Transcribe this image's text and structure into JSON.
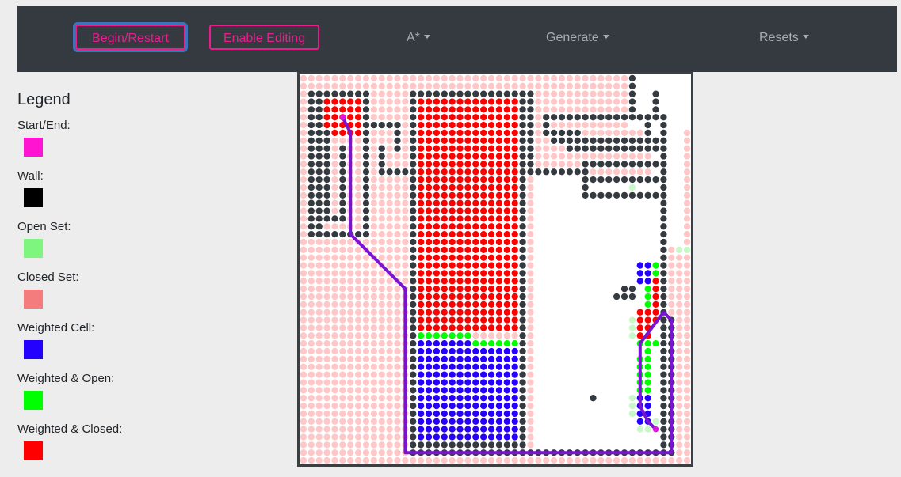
{
  "navbar": {
    "begin_label": "Begin/Restart",
    "edit_label": "Enable Editing",
    "algorithm_label": "A*",
    "generate_label": "Generate",
    "resets_label": "Resets"
  },
  "legend": {
    "title": "Legend",
    "items": [
      {
        "label": "Start/End:",
        "color": "#ff14d2"
      },
      {
        "label": "Wall:",
        "color": "#000000"
      },
      {
        "label": "Open Set:",
        "color": "#7ef57e"
      },
      {
        "label": "Closed Set:",
        "color": "#f47c7c"
      },
      {
        "label": "Weighted Cell:",
        "color": "#2400ff"
      },
      {
        "label": "Weighted & Open:",
        "color": "#00ff00"
      },
      {
        "label": "Weighted & Closed:",
        "color": "#ff0000"
      }
    ]
  },
  "grid": {
    "cols": 50,
    "rows": 50,
    "colors": {
      "background": "#ffffff",
      "closed": "#ffc7c7",
      "open": "#c8f7c8",
      "wall": "#343a40",
      "weighted": "#2400ff",
      "weighted_open": "#00ff00",
      "weighted_closed": "#ff0000",
      "path": "#7a14d0",
      "endpoint": "#e012e0"
    },
    "closed_region": {
      "c0": 0,
      "r0": 0,
      "c1": 49,
      "r1": 49
    },
    "empty_regions": [
      {
        "c0": 30,
        "r0": 13,
        "c1": 46,
        "r1": 47
      },
      {
        "c0": 42,
        "r0": 0,
        "c1": 49,
        "r1": 6
      },
      {
        "c0": 45,
        "r0": 6,
        "c1": 48,
        "r1": 21
      }
    ],
    "weighted_regions": [
      {
        "type": "weighted_closed",
        "c0": 15,
        "r0": 3,
        "c1": 28,
        "r1": 32
      },
      {
        "type": "weighted_open",
        "c0": 15,
        "r0": 33,
        "c1": 21,
        "r1": 33
      },
      {
        "type": "weighted_open",
        "c0": 22,
        "r0": 34,
        "c1": 28,
        "r1": 34
      },
      {
        "type": "weighted",
        "c0": 15,
        "r0": 34,
        "c1": 21,
        "r1": 47
      },
      {
        "type": "weighted",
        "c0": 22,
        "r0": 35,
        "c1": 28,
        "r1": 47
      },
      {
        "type": "weighted_closed",
        "c0": 3,
        "r0": 3,
        "c1": 7,
        "r1": 7
      },
      {
        "type": "weighted",
        "c0": 43,
        "r0": 24,
        "c1": 44,
        "r1": 26
      },
      {
        "type": "weighted_open",
        "c0": 45,
        "r0": 24,
        "c1": 46,
        "r1": 25
      },
      {
        "type": "weighted_closed",
        "c0": 45,
        "r0": 26,
        "c1": 46,
        "r1": 31
      },
      {
        "type": "weighted_open",
        "c0": 44,
        "r0": 27,
        "c1": 44,
        "r1": 29
      },
      {
        "type": "weighted_closed",
        "c0": 43,
        "r0": 30,
        "c1": 44,
        "r1": 33
      },
      {
        "type": "weighted_open",
        "c0": 43,
        "r0": 34,
        "c1": 45,
        "r1": 34
      },
      {
        "type": "weighted_open",
        "c0": 44,
        "r0": 35,
        "c1": 44,
        "r1": 40
      },
      {
        "type": "weighted_open",
        "c0": 43,
        "r0": 36,
        "c1": 43,
        "r1": 40
      },
      {
        "type": "weighted",
        "c0": 43,
        "r0": 41,
        "c1": 44,
        "r1": 44
      }
    ],
    "open_cells": [
      [
        48,
        22
      ],
      [
        49,
        22
      ],
      [
        42,
        31
      ],
      [
        42,
        32
      ],
      [
        42,
        33
      ],
      [
        42,
        41
      ],
      [
        42,
        42
      ],
      [
        42,
        43
      ],
      [
        43,
        45
      ],
      [
        44,
        45
      ],
      [
        45,
        44
      ],
      [
        46,
        6
      ],
      [
        42,
        14
      ]
    ],
    "wall_segments": [
      [
        1,
        2,
        1,
        20
      ],
      [
        2,
        2,
        2,
        20
      ],
      [
        1,
        20,
        7,
        20
      ],
      [
        2,
        2,
        8,
        2
      ],
      [
        8,
        2,
        8,
        20
      ],
      [
        3,
        7,
        3,
        18
      ],
      [
        5,
        9,
        5,
        18
      ],
      [
        3,
        18,
        5,
        18
      ],
      [
        9,
        6,
        12,
        6
      ],
      [
        12,
        6,
        12,
        9
      ],
      [
        10,
        9,
        10,
        12
      ],
      [
        10,
        12,
        14,
        12
      ],
      [
        14,
        10,
        14,
        12
      ],
      [
        14,
        2,
        14,
        47
      ],
      [
        14,
        2,
        29,
        2
      ],
      [
        29,
        2,
        29,
        12
      ],
      [
        29,
        12,
        36,
        12
      ],
      [
        36,
        11,
        45,
        11
      ],
      [
        36,
        11,
        36,
        15
      ],
      [
        36,
        15,
        46,
        15
      ],
      [
        31,
        5,
        46,
        5
      ],
      [
        31,
        5,
        31,
        7
      ],
      [
        31,
        7,
        35,
        7
      ],
      [
        35,
        7,
        35,
        8
      ],
      [
        32,
        8,
        45,
        8
      ],
      [
        34,
        9,
        45,
        9
      ],
      [
        44,
        6,
        44,
        9
      ],
      [
        42,
        0,
        42,
        4
      ],
      [
        45,
        2,
        45,
        5
      ],
      [
        37,
        13,
        45,
        13
      ],
      [
        46,
        6,
        46,
        48
      ],
      [
        14,
        48,
        47,
        48
      ],
      [
        14,
        47,
        28,
        47
      ],
      [
        28,
        2,
        28,
        47
      ],
      [
        40,
        28,
        42,
        28
      ],
      [
        41,
        27,
        42,
        27
      ],
      [
        37,
        41,
        37,
        41
      ],
      [
        47,
        31,
        47,
        48
      ]
    ],
    "path": [
      [
        5,
        5
      ],
      [
        6,
        7
      ],
      [
        6,
        20
      ],
      [
        13,
        27
      ],
      [
        13,
        48
      ],
      [
        47,
        48
      ],
      [
        47,
        31
      ],
      [
        46,
        30
      ],
      [
        43,
        34
      ],
      [
        43,
        42
      ],
      [
        44,
        44
      ],
      [
        45,
        45
      ]
    ],
    "start_cell": [
      5,
      5
    ],
    "end_cell": [
      45,
      45
    ]
  }
}
